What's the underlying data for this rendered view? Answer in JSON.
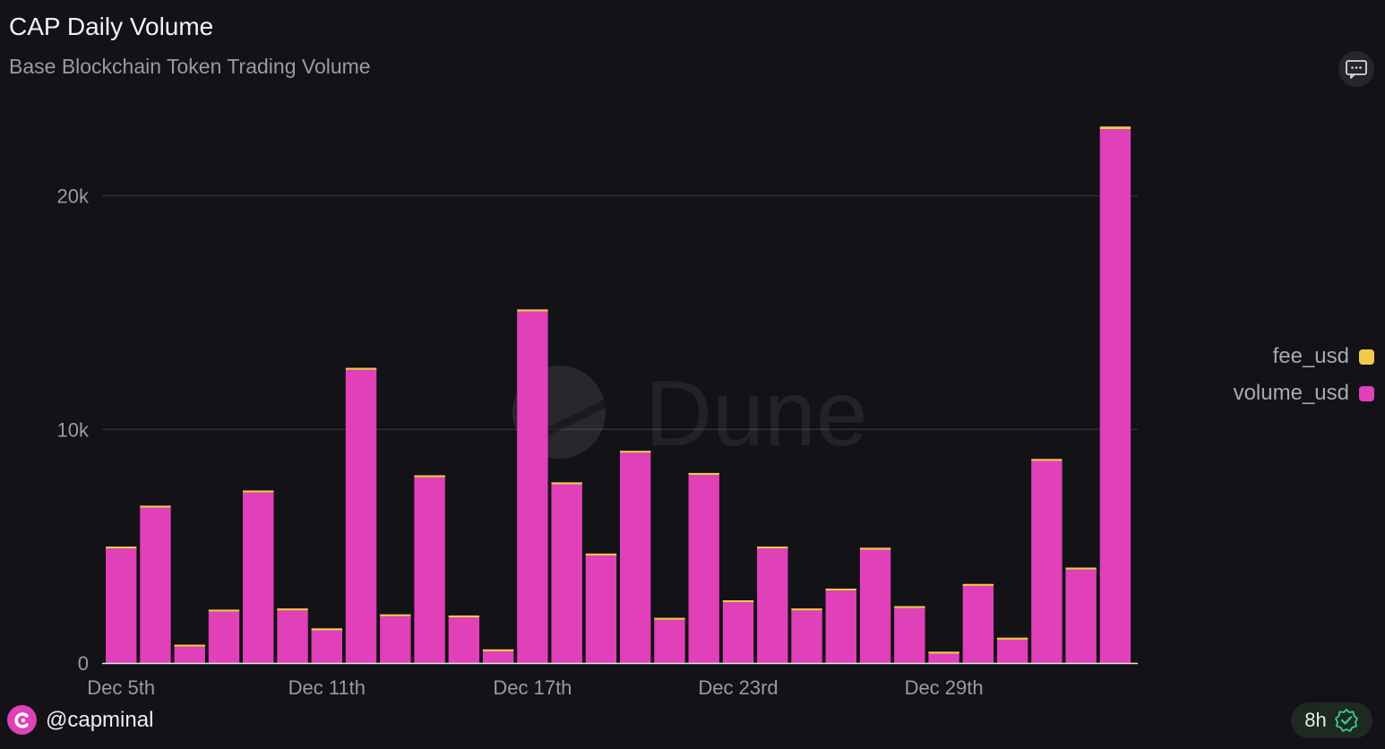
{
  "header": {
    "title": "CAP Daily Volume",
    "subtitle": "Base Blockchain Token Trading Volume"
  },
  "toolbar": {
    "comment_icon": "comment-icon"
  },
  "watermark": {
    "text": "Dune",
    "icon": "dune-logo-icon"
  },
  "legend": {
    "items": [
      {
        "label": "fee_usd",
        "color": "#f2c94c"
      },
      {
        "label": "volume_usd",
        "color": "#e040b8"
      }
    ]
  },
  "footer": {
    "user": "@capminal",
    "avatar_icon": "capminal-logo-icon",
    "freshness": "8h",
    "freshness_icon": "verified-check-icon"
  },
  "chart_data": {
    "type": "bar",
    "stacked": true,
    "x_ticks": [
      "Dec 5th",
      "Dec 11th",
      "Dec 17th",
      "Dec 23rd",
      "Dec 29th"
    ],
    "y_ticks": [
      "0",
      "10k",
      "20k"
    ],
    "ylim": [
      0,
      23000
    ],
    "grid": true,
    "legend_position": "right",
    "categories": [
      "Dec 5th",
      "Dec 6th",
      "Dec 7th",
      "Dec 8th",
      "Dec 9th",
      "Dec 10th",
      "Dec 11th",
      "Dec 12th",
      "Dec 13th",
      "Dec 14th",
      "Dec 15th",
      "Dec 16th",
      "Dec 17th",
      "Dec 18th",
      "Dec 19th",
      "Dec 20th",
      "Dec 21st",
      "Dec 22nd",
      "Dec 23rd",
      "Dec 24th",
      "Dec 25th",
      "Dec 26th",
      "Dec 27th",
      "Dec 28th",
      "Dec 29th",
      "Dec 30th",
      "Dec 31st",
      "Jan 1st",
      "Jan 2nd",
      "Jan 3rd"
    ],
    "series": [
      {
        "name": "volume_usd",
        "color": "#e040b8",
        "values": [
          4900,
          6650,
          700,
          2200,
          7300,
          2250,
          1400,
          12550,
          2000,
          7950,
          1950,
          500,
          15050,
          7650,
          4600,
          9000,
          1850,
          8050,
          2600,
          4900,
          2250,
          3100,
          4850,
          2350,
          400,
          3300,
          1000,
          8650,
          4000,
          22850
        ]
      },
      {
        "name": "fee_usd",
        "color": "#f2c94c",
        "values": [
          25,
          35,
          4,
          11,
          37,
          11,
          7,
          63,
          10,
          40,
          10,
          3,
          75,
          38,
          23,
          45,
          9,
          40,
          13,
          25,
          11,
          16,
          24,
          12,
          2,
          17,
          5,
          43,
          20,
          115
        ]
      }
    ]
  }
}
